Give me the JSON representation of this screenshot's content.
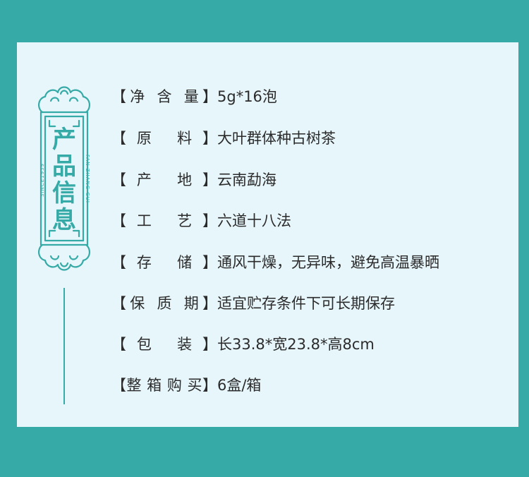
{
  "emblem": {
    "title_chars": [
      "产",
      "品",
      "信",
      "息"
    ],
    "side_left": "SINCE1939",
    "side_right": "FAN ZHANG GUI",
    "color": "#36aaa6"
  },
  "colors": {
    "background": "#36aaa6",
    "card": "#e7f6fb",
    "text": "#2b2b2b"
  },
  "rows": [
    {
      "label": "【净 含 量】",
      "value": "5g*16泡"
    },
    {
      "label": "【原 料】",
      "value": "大叶群体种古树茶"
    },
    {
      "label": "【产 地】",
      "value": "云南勐海"
    },
    {
      "label": "【工 艺】",
      "value": "六道十八法"
    },
    {
      "label": "【存 储】",
      "value": "通风干燥，无异味，避免高温暴晒"
    },
    {
      "label": "【保 质 期】",
      "value": "适宜贮存条件下可长期保存"
    },
    {
      "label": "【包 装】",
      "value": "长33.8*宽23.8*高8cm"
    },
    {
      "label": "【整 箱 购 买】",
      "value": "6盒/箱"
    }
  ]
}
